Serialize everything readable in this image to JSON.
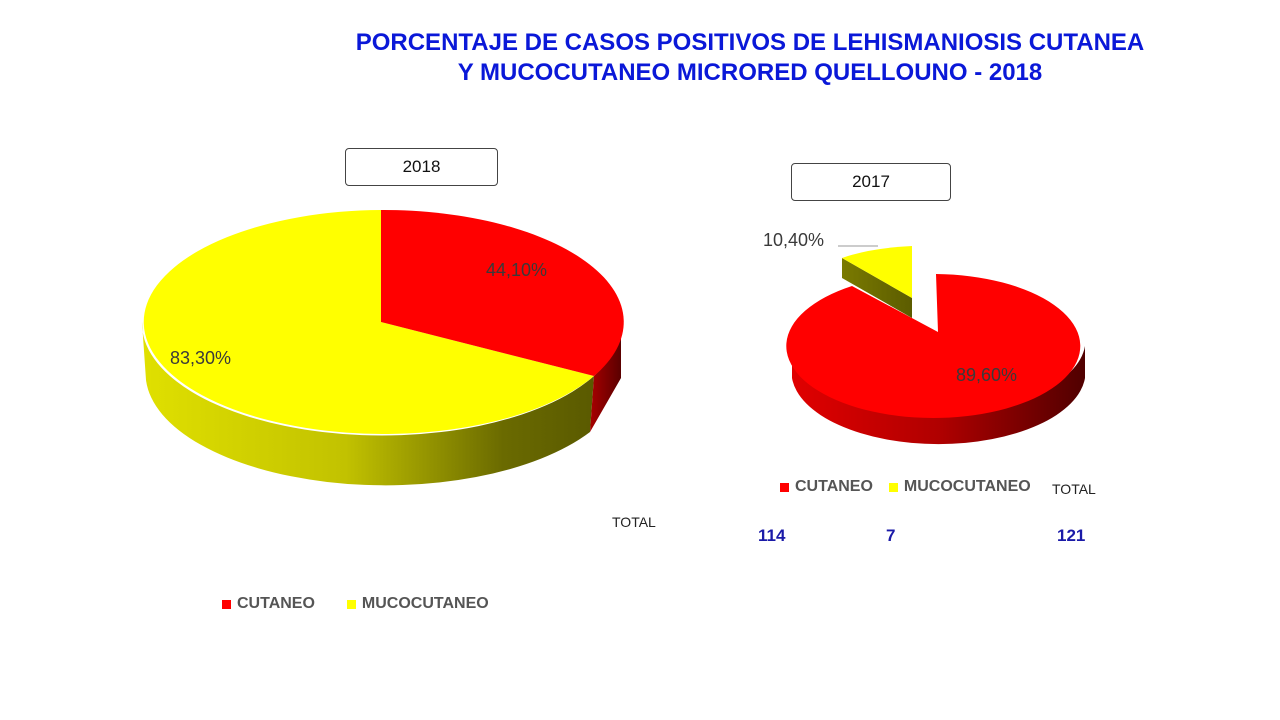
{
  "title": {
    "line1": "PORCENTAJE DE CASOS POSITIVOS DE LEHISMANIOSIS CUTANEA",
    "line2": "Y MUCOCUTANEO MICRORED QUELLOUNO - 2018"
  },
  "colors": {
    "cutaneo": "#ff0000",
    "mucocutaneo": "#ffff00"
  },
  "chart_data": [
    {
      "type": "pie",
      "title": "2018",
      "categories": [
        "CUTANEO",
        "MUCOCUTANEO"
      ],
      "labels": [
        "44,10%",
        "83,30%"
      ],
      "values": [
        44.1,
        83.3
      ],
      "legend_position": "bottom",
      "style": "3d"
    },
    {
      "type": "pie",
      "title": "2017",
      "categories": [
        "CUTANEO",
        "MUCOCUTANEO"
      ],
      "labels": [
        "89,60%",
        "10,40%"
      ],
      "values": [
        89.6,
        10.4
      ],
      "exploded": "MUCOCUTANEO",
      "legend_position": "bottom",
      "style": "3d"
    }
  ],
  "legend": {
    "cutaneo": "CUTANEO",
    "mucocutaneo": "MUCOCUTANEO"
  },
  "totals": {
    "total_label": "TOTAL",
    "cutaneo": "114",
    "mucocutaneo": "7",
    "total": "121"
  }
}
